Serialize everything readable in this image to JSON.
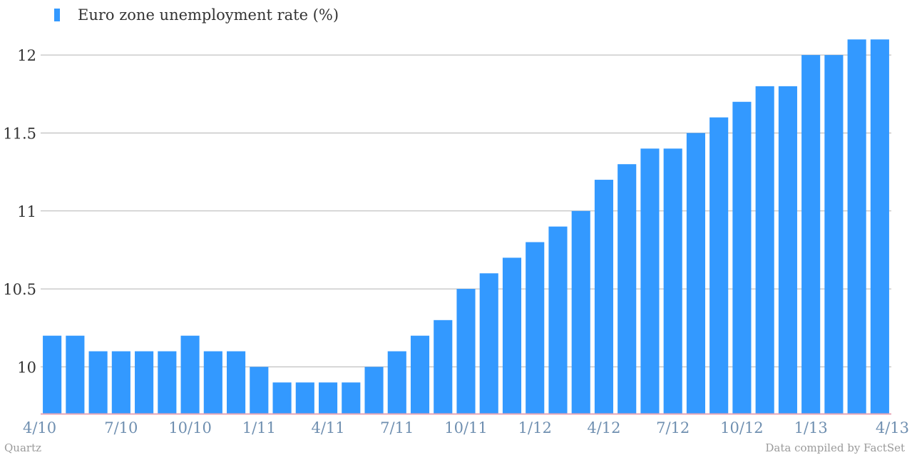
{
  "chart_data": {
    "type": "bar",
    "legend": [
      {
        "name": "Euro zone unemployment rate (%)",
        "color": "#3399ff"
      }
    ],
    "legend_position": "top-left",
    "categories": [
      "4/10",
      "5/10",
      "6/10",
      "7/10",
      "8/10",
      "9/10",
      "10/10",
      "11/10",
      "12/10",
      "1/11",
      "2/11",
      "3/11",
      "4/11",
      "5/11",
      "6/11",
      "7/11",
      "8/11",
      "9/11",
      "10/11",
      "11/11",
      "12/11",
      "1/12",
      "2/12",
      "3/12",
      "4/12",
      "5/12",
      "6/12",
      "7/12",
      "8/12",
      "9/12",
      "10/12",
      "11/12",
      "12/12",
      "1/13",
      "2/13",
      "3/13",
      "4/13"
    ],
    "series": [
      {
        "name": "Euro zone unemployment rate (%)",
        "values": [
          10.2,
          10.2,
          10.1,
          10.1,
          10.1,
          10.1,
          10.2,
          10.1,
          10.1,
          10.0,
          9.9,
          9.9,
          9.9,
          9.9,
          10.0,
          10.1,
          10.2,
          10.3,
          10.5,
          10.6,
          10.7,
          10.8,
          10.9,
          11.0,
          11.2,
          11.3,
          11.4,
          11.4,
          11.5,
          11.6,
          11.7,
          11.8,
          11.8,
          12.0,
          12.0,
          12.1,
          12.1
        ]
      }
    ],
    "x_tick_labels": [
      "4/10",
      "7/10",
      "10/10",
      "1/11",
      "4/11",
      "7/11",
      "10/11",
      "1/12",
      "4/12",
      "7/12",
      "10/12",
      "1/13",
      "4/13"
    ],
    "y_ticks": [
      "10",
      "10.5",
      "11",
      "11.5",
      "12"
    ],
    "ylim": [
      9.7,
      12.17
    ],
    "grid": true,
    "colors": {
      "bar": "#3399ff",
      "grid": "#b3b3b3",
      "baseline": "#e8a6b6",
      "x_tick_text": "#6f8fb0",
      "y_tick_text": "#333333"
    }
  },
  "footer": {
    "source_left": "Quartz",
    "source_right": "Data compiled by FactSet"
  }
}
